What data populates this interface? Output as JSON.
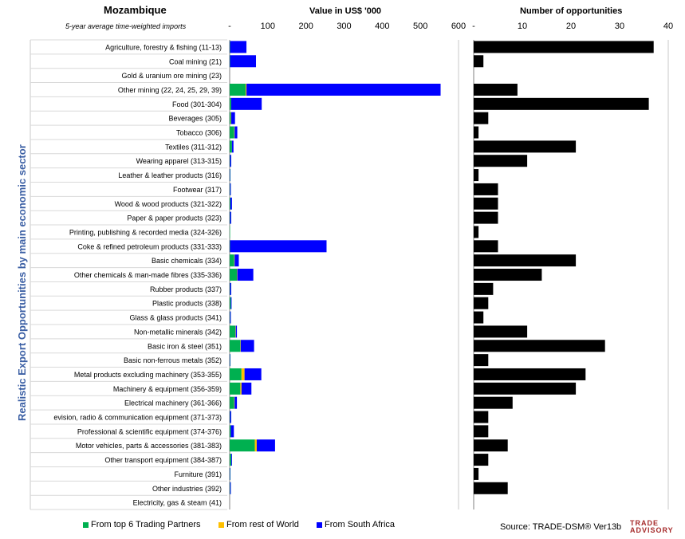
{
  "header": {
    "country": "Mozambique",
    "subtitle": "5-year average time-weighted imports",
    "value_title": "Value in US$ '000",
    "count_title": "Number of opportunities",
    "ylabel": "Realistic Export Opportunities by main economic sector"
  },
  "legend": [
    {
      "label": "From top 6 Trading Partners",
      "color": "#00b050"
    },
    {
      "label": "From rest of World",
      "color": "#ffc000"
    },
    {
      "label": "From South Africa",
      "color": "#0000ff"
    }
  ],
  "source": "Source: TRADE-DSM® Ver13b",
  "logo": {
    "line1": "TRADE",
    "line2": "ADVISORY"
  },
  "chart_data": [
    {
      "type": "bar",
      "orientation": "horizontal",
      "stacked": true,
      "title": "Value in US$ '000",
      "xlim": [
        0,
        600
      ],
      "xticks": [
        0,
        100,
        200,
        300,
        400,
        500,
        600
      ],
      "xtick_labels": [
        "-",
        "100",
        "200",
        "300",
        "400",
        "500",
        "600"
      ],
      "categories": [
        "Agriculture, forestry & fishing (11-13)",
        "Coal mining (21)",
        "Gold & uranium ore mining (23)",
        "Other mining (22, 24, 25, 29, 39)",
        "Food (301-304)",
        "Beverages (305)",
        "Tobacco (306)",
        "Textiles (311-312)",
        "Wearing apparel (313-315)",
        "Leather & leather products (316)",
        "Footwear (317)",
        "Wood & wood products (321-322)",
        "Paper & paper products (323)",
        "Printing, publishing & recorded media (324-326)",
        "Coke & refined petroleum products (331-333)",
        "Basic chemicals (334)",
        "Other chemicals & man-made fibres (335-336)",
        "Rubber products (337)",
        "Plastic products (338)",
        "Glass & glass products (341)",
        "Non-metallic minerals (342)",
        "Basic iron & steel (351)",
        "Basic non-ferrous metals (352)",
        "Metal products excluding machinery (353-355)",
        "Machinery & equipment (356-359)",
        "Electrical machinery (361-366)",
        "evision, radio & communication equipment (371-373)",
        "Professional & scientific equipment (374-376)",
        "Motor vehicles, parts & accessories (381-383)",
        "Other transport equipment (384-387)",
        "Furniture (391)",
        "Other industries (392)",
        "Electricity, gas & steam (41)"
      ],
      "series": [
        {
          "name": "From top 6 Trading Partners",
          "color": "#00b050",
          "values": [
            1,
            1,
            0,
            42,
            4,
            3,
            12,
            6,
            1,
            1,
            1,
            2,
            1,
            1,
            1,
            12,
            19,
            1,
            3,
            1,
            15,
            28,
            1,
            31,
            28,
            12,
            1,
            3,
            66,
            4,
            1,
            1,
            0
          ]
        },
        {
          "name": "From rest of World",
          "color": "#ffc000",
          "values": [
            0,
            0,
            0,
            2,
            0,
            1,
            1,
            0,
            0,
            0,
            0,
            0,
            0,
            0,
            0,
            1,
            1,
            0,
            0,
            0,
            1,
            1,
            0,
            8,
            3,
            1,
            0,
            0,
            5,
            0,
            0,
            0,
            0
          ]
        },
        {
          "name": "From South Africa",
          "color": "#0000ff",
          "values": [
            43,
            68,
            0,
            509,
            80,
            10,
            7,
            4,
            3,
            1,
            2,
            4,
            3,
            0,
            253,
            11,
            42,
            3,
            2,
            2,
            3,
            35,
            1,
            44,
            26,
            6,
            3,
            8,
            48,
            2,
            1,
            2,
            0
          ]
        }
      ]
    },
    {
      "type": "bar",
      "orientation": "horizontal",
      "title": "Number of opportunities",
      "xlim": [
        0,
        40
      ],
      "xticks": [
        0,
        10,
        20,
        30,
        40
      ],
      "xtick_labels": [
        "-",
        "10",
        "20",
        "30",
        "40"
      ],
      "color": "#000000",
      "values": [
        37,
        2,
        0,
        9,
        36,
        3,
        1,
        21,
        11,
        1,
        5,
        5,
        5,
        1,
        5,
        21,
        14,
        4,
        3,
        2,
        11,
        27,
        3,
        23,
        21,
        8,
        3,
        3,
        7,
        3,
        1,
        7,
        0
      ]
    }
  ]
}
